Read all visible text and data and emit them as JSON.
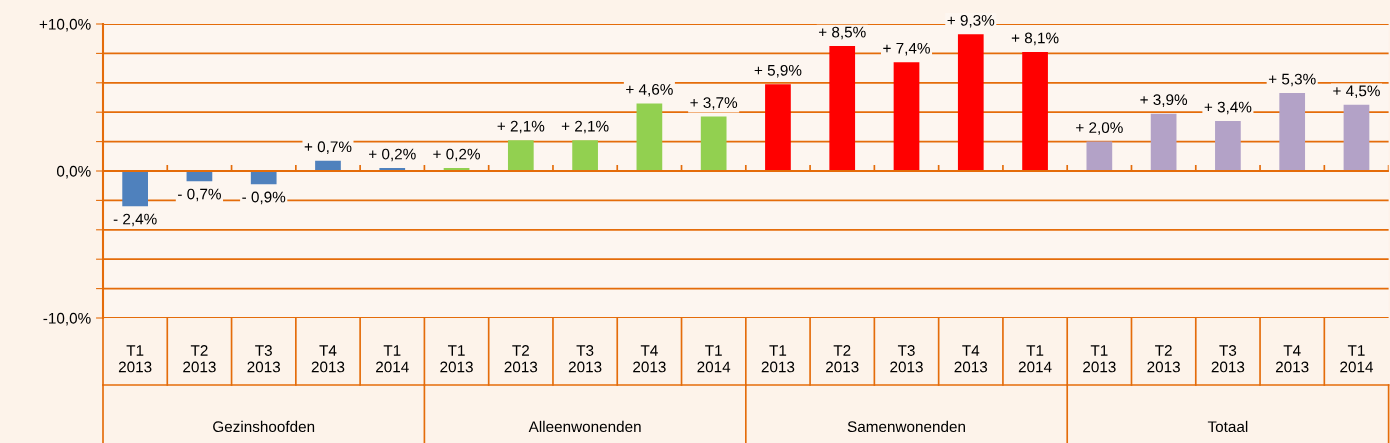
{
  "chart_data": {
    "type": "bar",
    "categories": [
      "T1\n2013",
      "T2\n2013",
      "T3\n2013",
      "T4\n2013",
      "T1\n2014",
      "T1\n2013",
      "T2\n2013",
      "T3\n2013",
      "T4\n2013",
      "T1\n2014",
      "T1\n2013",
      "T2\n2013",
      "T3\n2013",
      "T4\n2013",
      "T1\n2014",
      "T1\n2013",
      "T2\n2013",
      "T3\n2013",
      "T4\n2013",
      "T1\n2014"
    ],
    "values": [
      -2.4,
      -0.7,
      -0.9,
      0.7,
      0.2,
      0.2,
      2.1,
      2.1,
      4.6,
      3.7,
      5.9,
      8.5,
      7.4,
      9.3,
      8.1,
      2.0,
      3.9,
      3.4,
      5.3,
      4.5
    ],
    "colors": [
      "#4f81bd",
      "#4f81bd",
      "#4f81bd",
      "#4f81bd",
      "#4f81bd",
      "#92d050",
      "#92d050",
      "#92d050",
      "#92d050",
      "#92d050",
      "#ff0000",
      "#ff0000",
      "#ff0000",
      "#ff0000",
      "#ff0000",
      "#b3a2c7",
      "#b3a2c7",
      "#b3a2c7",
      "#b3a2c7",
      "#b3a2c7"
    ],
    "value_labels": [
      "- 2,4%",
      "- 0,7%",
      "- 0,9%",
      "+ 0,7%",
      "+ 0,2%",
      "+ 0,2%",
      "+ 2,1%",
      "+ 2,1%",
      "+ 4,6%",
      "+ 3,7%",
      "+ 5,9%",
      "+ 8,5%",
      "+ 7,4%",
      "+ 9,3%",
      "+ 8,1%",
      "+ 2,0%",
      "+ 3,9%",
      "+ 3,4%",
      "+ 5,3%",
      "+ 4,5%"
    ],
    "annotations": [
      "Gezinshoofden",
      "Alleenwonenden",
      "Samenwonenden",
      "Totaal"
    ],
    "ylim": [
      -10,
      10
    ],
    "yticks": [
      {
        "value": -10,
        "label": "-10,0%"
      },
      {
        "value": -8,
        "label": null
      },
      {
        "value": -6,
        "label": null
      },
      {
        "value": -4,
        "label": null
      },
      {
        "value": -2,
        "label": null
      },
      {
        "value": 0,
        "label": "0,0%"
      },
      {
        "value": 2,
        "label": null
      },
      {
        "value": 4,
        "label": null
      },
      {
        "value": 6,
        "label": null
      },
      {
        "value": 8,
        "label": null
      },
      {
        "value": 10,
        "label": "+10,0%"
      }
    ],
    "grid": "y"
  }
}
